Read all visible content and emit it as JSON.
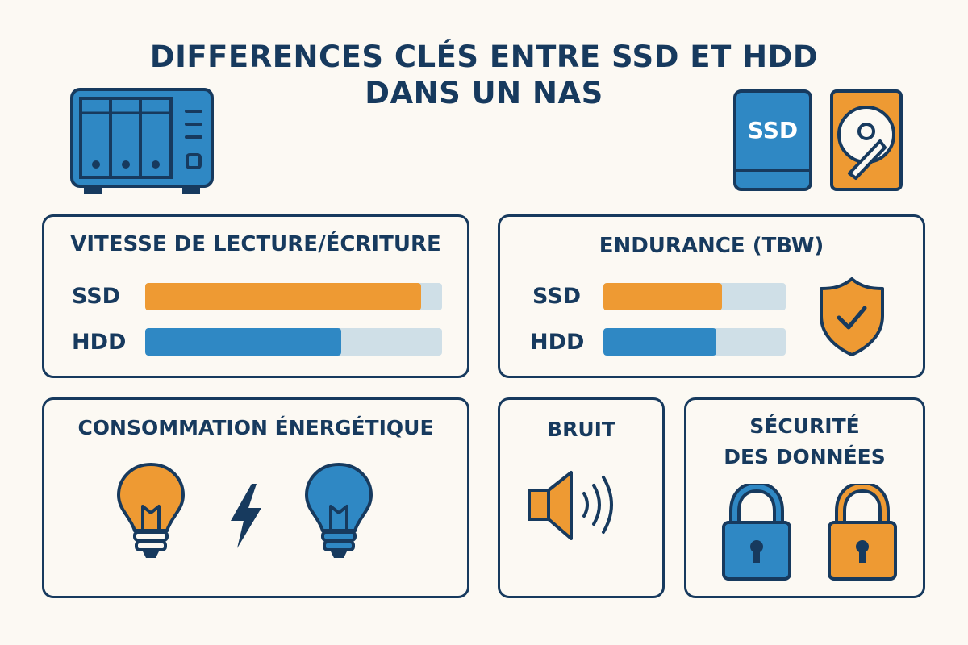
{
  "title": {
    "line1": "DIFFERENCES CLÉS ENTRE SSD ET HDD",
    "line2": "DANS UN NAS"
  },
  "header_icons": {
    "nas": "nas-icon",
    "ssd": {
      "icon": "ssd-drive-icon",
      "label": "SSD"
    },
    "hdd": "hdd-drive-icon"
  },
  "colors": {
    "navy": "#173a5e",
    "orange": "#ee9a33",
    "blue": "#2f88c4",
    "track": "#cfdfe7",
    "background": "#fcf9f3"
  },
  "speed": {
    "heading": "VITESSE DE LECTURE/ÉCRITURE",
    "bars": [
      {
        "label": "SSD",
        "level": 0.93,
        "color": "#ee9a33"
      },
      {
        "label": "HDD",
        "level": 0.66,
        "color": "#2f88c4"
      }
    ]
  },
  "endurance": {
    "heading": "ENDURANCE (TBW)",
    "bars": [
      {
        "label": "SSD",
        "level": 0.65,
        "color": "#ee9a33"
      },
      {
        "label": "HDD",
        "level": 0.62,
        "color": "#2f88c4"
      }
    ],
    "icon": "shield-check-icon"
  },
  "energy": {
    "heading": "CONSOMMATION ÉNERGÉTIQUE",
    "icons": [
      "lightbulb-orange-icon",
      "lightning-bolt-icon",
      "lightbulb-blue-icon"
    ]
  },
  "noise": {
    "heading": "BRUIT",
    "icon": "speaker-icon"
  },
  "security": {
    "heading_line1": "SÉCURITÉ",
    "heading_line2": "DES DONNÉES",
    "icons": [
      "padlock-blue-icon",
      "padlock-orange-icon"
    ]
  }
}
